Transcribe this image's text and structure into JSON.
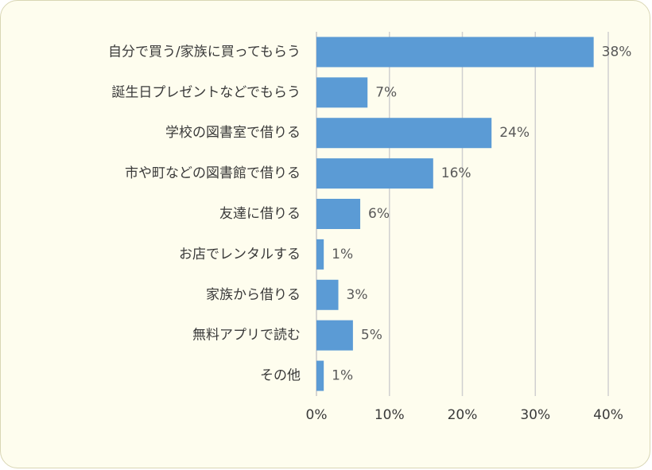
{
  "chart_data": {
    "type": "bar",
    "orientation": "horizontal",
    "categories": [
      "自分で買う/家族に買ってもらう",
      "誕生日プレゼントなどでもらう",
      "学校の図書室で借りる",
      "市や町などの図書館で借りる",
      "友達に借りる",
      "お店でレンタルする",
      "家族から借りる",
      "無料アプリで読む",
      "その他"
    ],
    "values": [
      38,
      7,
      24,
      16,
      6,
      1,
      3,
      5,
      1
    ],
    "value_labels": [
      "38%",
      "7%",
      "24%",
      "16%",
      "6%",
      "1%",
      "3%",
      "5%",
      "1%"
    ],
    "xlim": [
      0,
      40
    ],
    "x_ticks": [
      0,
      10,
      20,
      30,
      40
    ],
    "x_tick_labels": [
      "0%",
      "10%",
      "20%",
      "30%",
      "40%"
    ],
    "grid": "vertical",
    "colors": {
      "bar": "#5b9bd5",
      "background": "#fefdee",
      "grid": "#d0d0d0"
    }
  }
}
